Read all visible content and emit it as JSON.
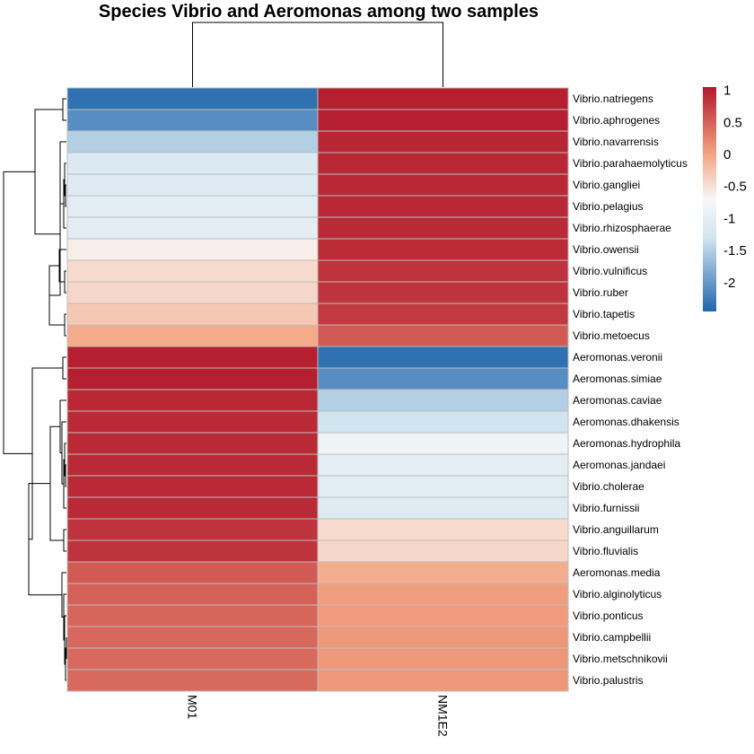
{
  "chart_data": {
    "type": "heatmap",
    "title": "Species Vibrio and Aeromonas among two samples",
    "columns": [
      "M01",
      "NM1E2"
    ],
    "rows": [
      {
        "label": "Vibrio.natriegens",
        "values": [
          -2.35,
          1.0
        ]
      },
      {
        "label": "Vibrio.aphrogenes",
        "values": [
          -2.1,
          1.0
        ]
      },
      {
        "label": "Vibrio.navarrensis",
        "values": [
          -1.5,
          0.95
        ]
      },
      {
        "label": "Vibrio.parahaemolyticus",
        "values": [
          -1.15,
          0.93
        ]
      },
      {
        "label": "Vibrio.gangliei",
        "values": [
          -1.1,
          0.93
        ]
      },
      {
        "label": "Vibrio.pelagius",
        "values": [
          -1.05,
          0.93
        ]
      },
      {
        "label": "Vibrio.rhizosphaerae",
        "values": [
          -1.02,
          0.92
        ]
      },
      {
        "label": "Vibrio.owensii",
        "values": [
          -0.62,
          0.9
        ]
      },
      {
        "label": "Vibrio.vulnificus",
        "values": [
          -0.45,
          0.85
        ]
      },
      {
        "label": "Vibrio.ruber",
        "values": [
          -0.42,
          0.85
        ]
      },
      {
        "label": "Vibrio.tapetis",
        "values": [
          -0.3,
          0.8
        ]
      },
      {
        "label": "Vibrio.metoecus",
        "values": [
          -0.05,
          0.55
        ]
      },
      {
        "label": "Aeromonas.veronii",
        "values": [
          1.0,
          -2.35
        ]
      },
      {
        "label": "Aeromonas.simiae",
        "values": [
          1.0,
          -2.1
        ]
      },
      {
        "label": "Aeromonas.caviae",
        "values": [
          0.93,
          -1.5
        ]
      },
      {
        "label": "Aeromonas.dhakensis",
        "values": [
          0.92,
          -1.3
        ]
      },
      {
        "label": "Aeromonas.hydrophila",
        "values": [
          0.92,
          -0.85
        ]
      },
      {
        "label": "Aeromonas.jandaei",
        "values": [
          0.92,
          -1.0
        ]
      },
      {
        "label": "Vibrio.cholerae",
        "values": [
          0.92,
          -1.05
        ]
      },
      {
        "label": "Vibrio.furnissii",
        "values": [
          0.92,
          -1.1
        ]
      },
      {
        "label": "Vibrio.anguillarum",
        "values": [
          0.85,
          -0.45
        ]
      },
      {
        "label": "Vibrio.fluvialis",
        "values": [
          0.85,
          -0.42
        ]
      },
      {
        "label": "Aeromonas.media",
        "values": [
          0.55,
          -0.08
        ]
      },
      {
        "label": "Vibrio.alginolyticus",
        "values": [
          0.5,
          0.05
        ]
      },
      {
        "label": "Vibrio.ponticus",
        "values": [
          0.48,
          0.07
        ]
      },
      {
        "label": "Vibrio.campbellii",
        "values": [
          0.46,
          0.1
        ]
      },
      {
        "label": "Vibrio.metschnikovii",
        "values": [
          0.45,
          0.1
        ]
      },
      {
        "label": "Vibrio.palustris",
        "values": [
          0.45,
          0.1
        ]
      }
    ],
    "color_scale": {
      "min": -2.45,
      "max": 1.05,
      "stops": [
        {
          "value": -2.45,
          "color": "#2166ac"
        },
        {
          "value": -1.3,
          "color": "#d1e5f0"
        },
        {
          "value": -0.7,
          "color": "#f7f7f7"
        },
        {
          "value": 0.0,
          "color": "#f4a582"
        },
        {
          "value": 1.05,
          "color": "#b2182b"
        }
      ]
    },
    "legend": {
      "position": "right",
      "ticks": [
        {
          "value": 1,
          "label": "1"
        },
        {
          "value": 0.5,
          "label": "0.5"
        },
        {
          "value": 0,
          "label": "0"
        },
        {
          "value": -0.5,
          "label": "-0.5"
        },
        {
          "value": -1,
          "label": "-1"
        },
        {
          "value": -1.5,
          "label": "-1.5"
        },
        {
          "value": -2,
          "label": "-2"
        }
      ]
    },
    "row_dendrogram": true,
    "column_dendrogram": true
  }
}
